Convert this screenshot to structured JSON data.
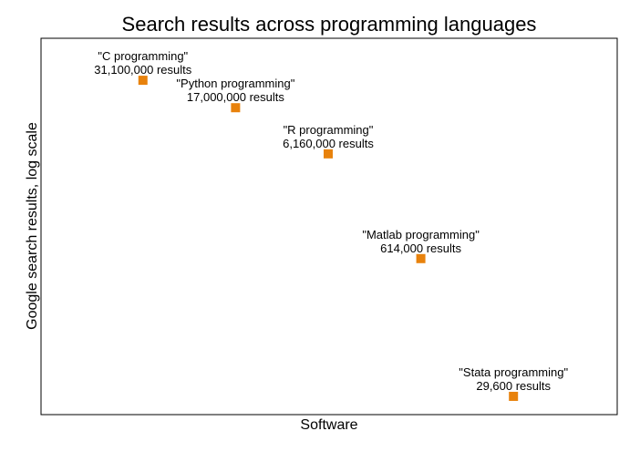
{
  "chart_data": {
    "type": "scatter",
    "title": "Search results across programming languages",
    "xlabel": "Software",
    "ylabel": "Google search results, log scale",
    "y_scale": "log",
    "grid": false,
    "legend": "none",
    "marker": "square",
    "color": "#E8820C",
    "xlim": [
      -0.1,
      6.12
    ],
    "ylim": [
      19800,
      78400000
    ],
    "points": [
      {
        "x": 1,
        "y": 31100000,
        "label": "\"C programming\"",
        "value_label": "31,100,000 results"
      },
      {
        "x": 2,
        "y": 17000000,
        "label": "\"Python programming\"",
        "value_label": "17,000,000 results"
      },
      {
        "x": 3,
        "y": 6160000,
        "label": "\"R programming\"",
        "value_label": "6,160,000 results"
      },
      {
        "x": 4,
        "y": 614000,
        "label": "\"Matlab programming\"",
        "value_label": "614,000 results"
      },
      {
        "x": 5,
        "y": 29600,
        "label": "\"Stata programming\"",
        "value_label": "29,600 results"
      }
    ]
  }
}
